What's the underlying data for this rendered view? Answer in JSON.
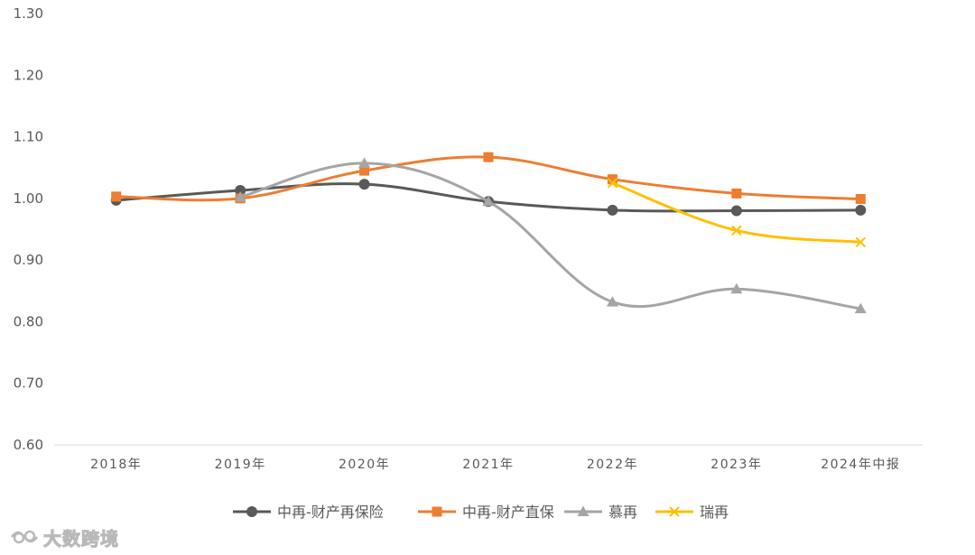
{
  "chart_data": {
    "type": "line",
    "categories": [
      "2018年",
      "2019年",
      "2020年",
      "2021年",
      "2022年",
      "2023年",
      "2024年中报"
    ],
    "ylim": [
      0.6,
      1.3
    ],
    "yticks": [
      "0.60",
      "0.70",
      "0.80",
      "0.90",
      "1.00",
      "1.10",
      "1.20",
      "1.30"
    ],
    "grid": false,
    "legend": "bottom",
    "series": [
      {
        "name": "中再-财产再保险",
        "color": "#595959",
        "marker": "circle",
        "values": [
          0.997,
          1.013,
          1.023,
          0.995,
          0.981,
          0.98,
          0.981
        ]
      },
      {
        "name": "中再-财产直保",
        "color": "#ed7d31",
        "marker": "square",
        "values": [
          1.003,
          1.0,
          1.045,
          1.067,
          1.031,
          1.008,
          0.999
        ]
      },
      {
        "name": "慕再",
        "color": "#a5a5a5",
        "marker": "triangle",
        "values": [
          null,
          1.002,
          1.057,
          0.995,
          0.832,
          0.853,
          0.821
        ]
      },
      {
        "name": "瑞再",
        "color": "#ffc000",
        "marker": "x",
        "values": [
          null,
          null,
          null,
          null,
          1.025,
          0.948,
          0.929
        ]
      }
    ]
  },
  "watermark": {
    "icon": "eye-logo-icon",
    "text": "大数跨境"
  }
}
